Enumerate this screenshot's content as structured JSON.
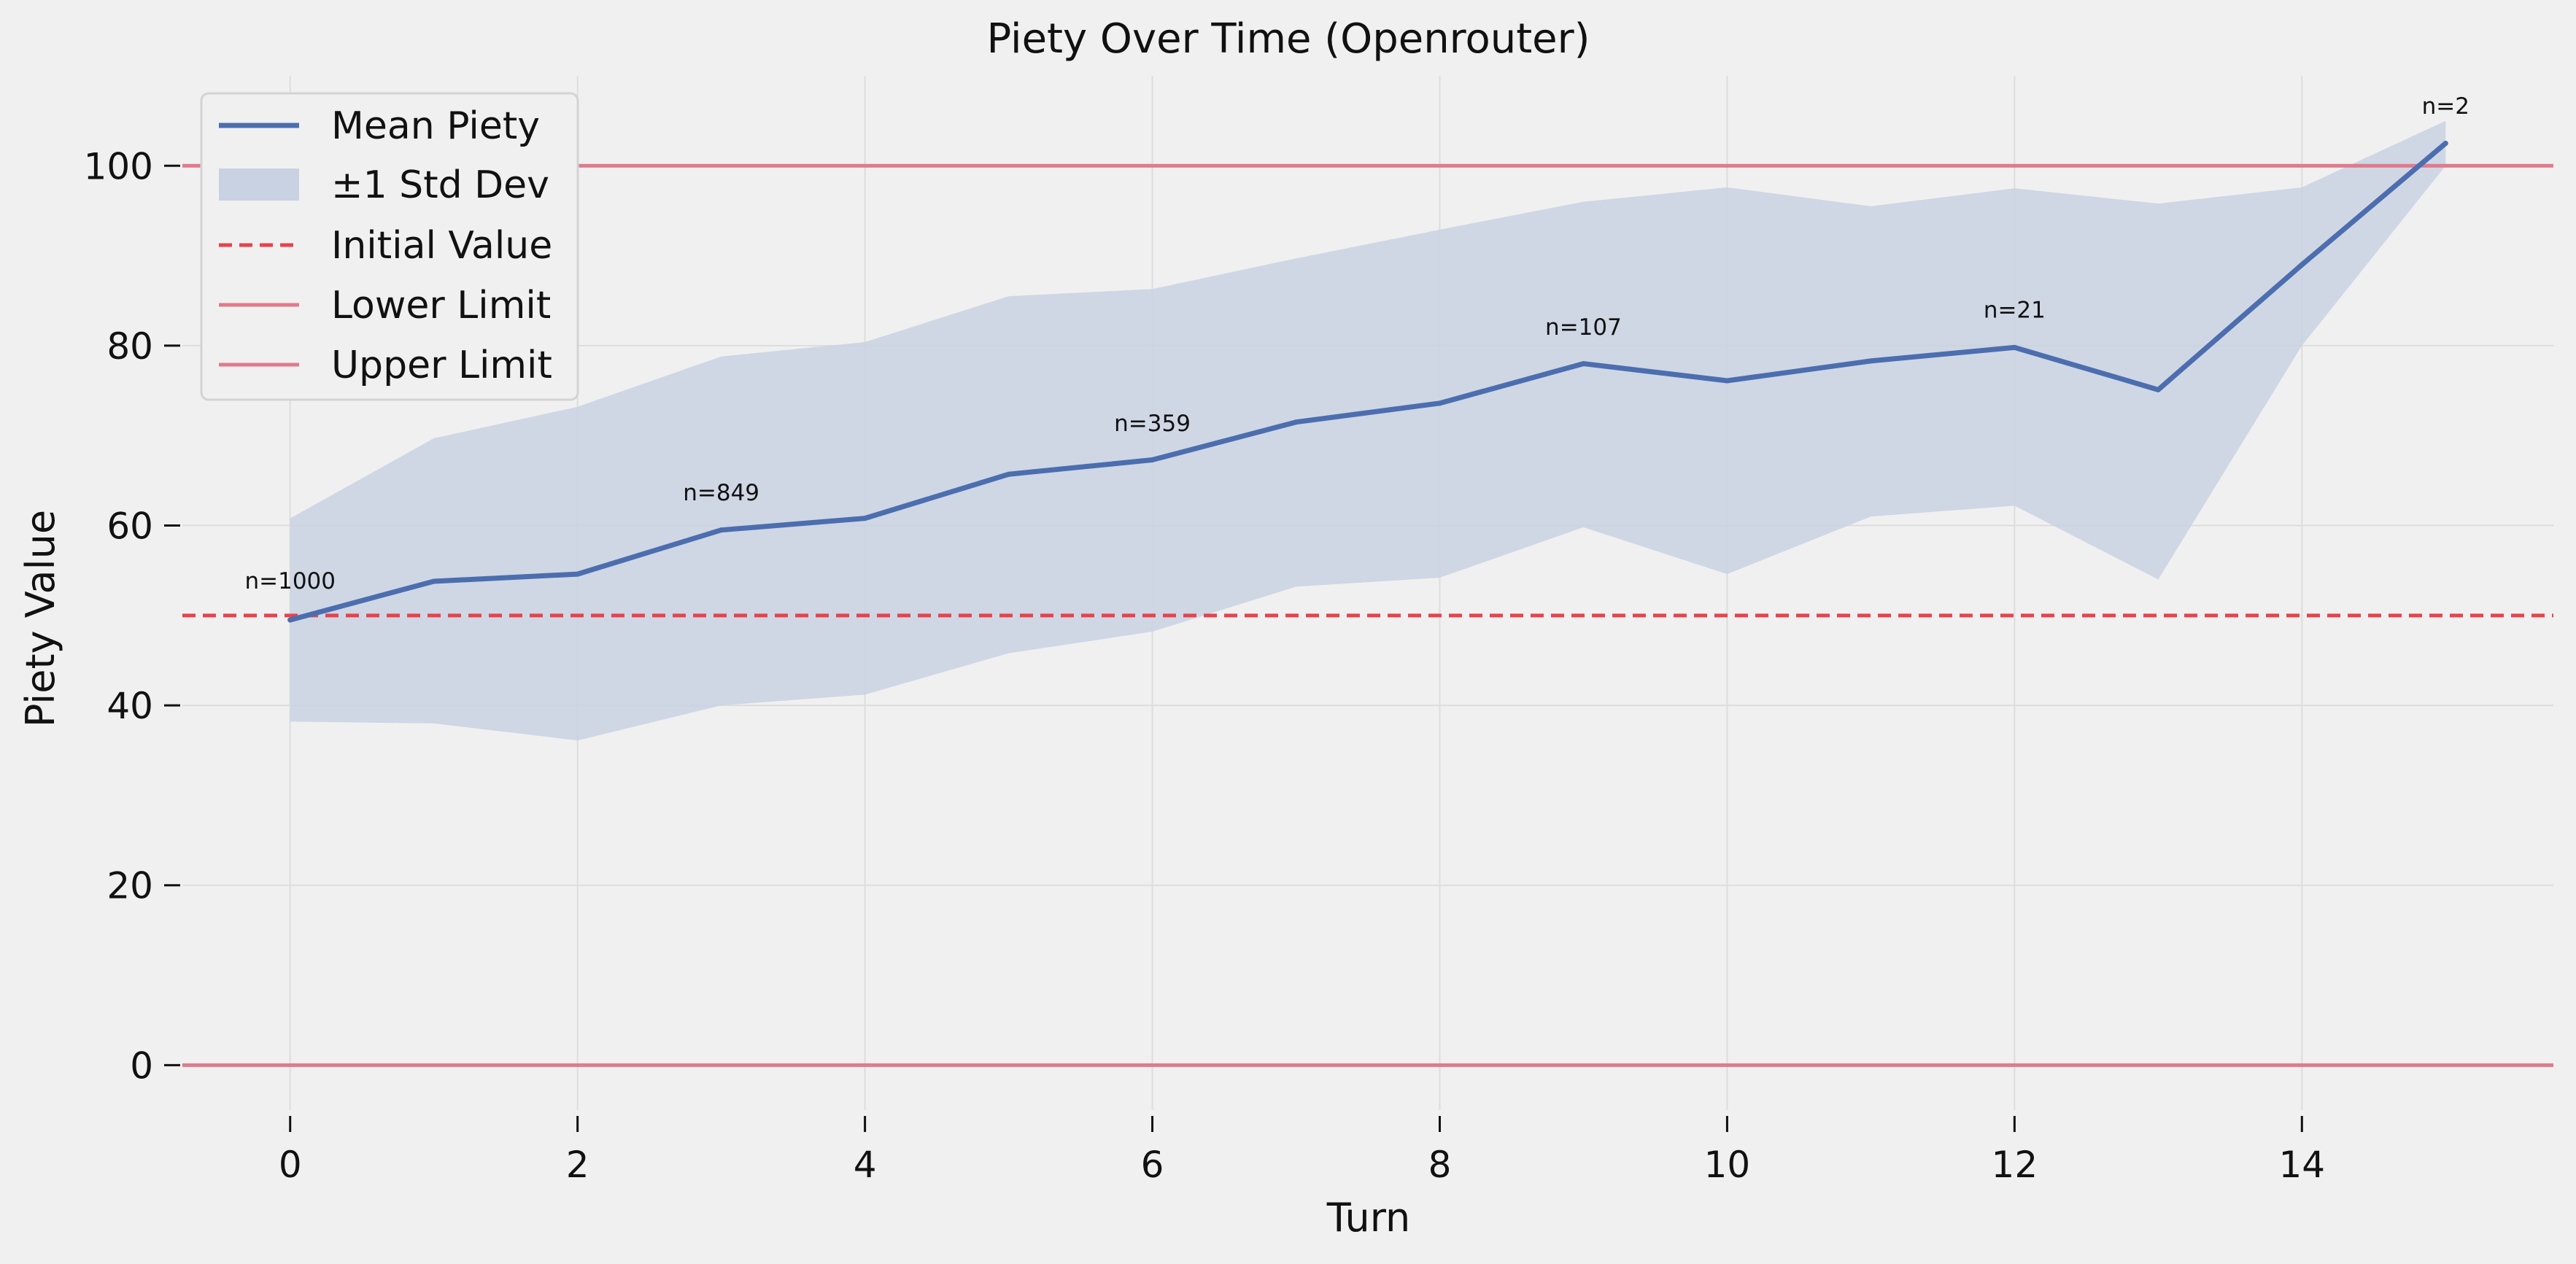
{
  "chart_data": {
    "type": "line",
    "title": "Piety Over Time (Openrouter)",
    "xlabel": "Turn",
    "ylabel": "Piety Value",
    "xlim": [
      -0.75,
      15.75
    ],
    "ylim": [
      -5,
      110
    ],
    "x_ticks": [
      0,
      2,
      4,
      6,
      8,
      10,
      12,
      14
    ],
    "y_ticks": [
      0,
      20,
      40,
      60,
      80,
      100
    ],
    "grid": true,
    "legend_position": "top-left",
    "x": [
      0,
      1,
      2,
      3,
      4,
      5,
      6,
      7,
      8,
      9,
      10,
      11,
      12,
      13,
      14,
      15
    ],
    "series": [
      {
        "name": "Mean Piety",
        "color": "#4c6eaf",
        "values": [
          49.5,
          53.8,
          54.6,
          59.5,
          60.8,
          65.7,
          67.3,
          71.5,
          73.6,
          78.0,
          76.1,
          78.3,
          79.8,
          75.1,
          89.0,
          102.5
        ]
      }
    ],
    "bands": [
      {
        "name": "±1 Std Dev",
        "color": "#c9d2e3",
        "lower": [
          38.2,
          38.0,
          36.1,
          40.0,
          41.2,
          45.8,
          48.2,
          53.2,
          54.2,
          59.8,
          54.6,
          61.0,
          62.2,
          54.0,
          80.0,
          100.0
        ],
        "upper": [
          60.8,
          69.7,
          73.2,
          78.8,
          80.4,
          85.5,
          86.3,
          89.7,
          92.9,
          96.0,
          97.6,
          95.5,
          97.5,
          95.8,
          97.6,
          105.0
        ]
      }
    ],
    "reference_lines": [
      {
        "name": "Initial Value",
        "y": 50,
        "color": "#e8424b",
        "style": "dashed"
      },
      {
        "name": "Lower Limit",
        "y": 0,
        "color": "#e07a8c",
        "style": "solid"
      },
      {
        "name": "Upper Limit",
        "y": 100,
        "color": "#e07a8c",
        "style": "solid"
      }
    ],
    "annotations": [
      {
        "x": 0,
        "y": 53,
        "text": "n=1000"
      },
      {
        "x": 3,
        "y": 62.8,
        "text": "n=849"
      },
      {
        "x": 6,
        "y": 70.5,
        "text": "n=359"
      },
      {
        "x": 9,
        "y": 81.2,
        "text": "n=107"
      },
      {
        "x": 12,
        "y": 83.1,
        "text": "n=21"
      },
      {
        "x": 15,
        "y": 105.8,
        "text": "n=2"
      }
    ]
  }
}
